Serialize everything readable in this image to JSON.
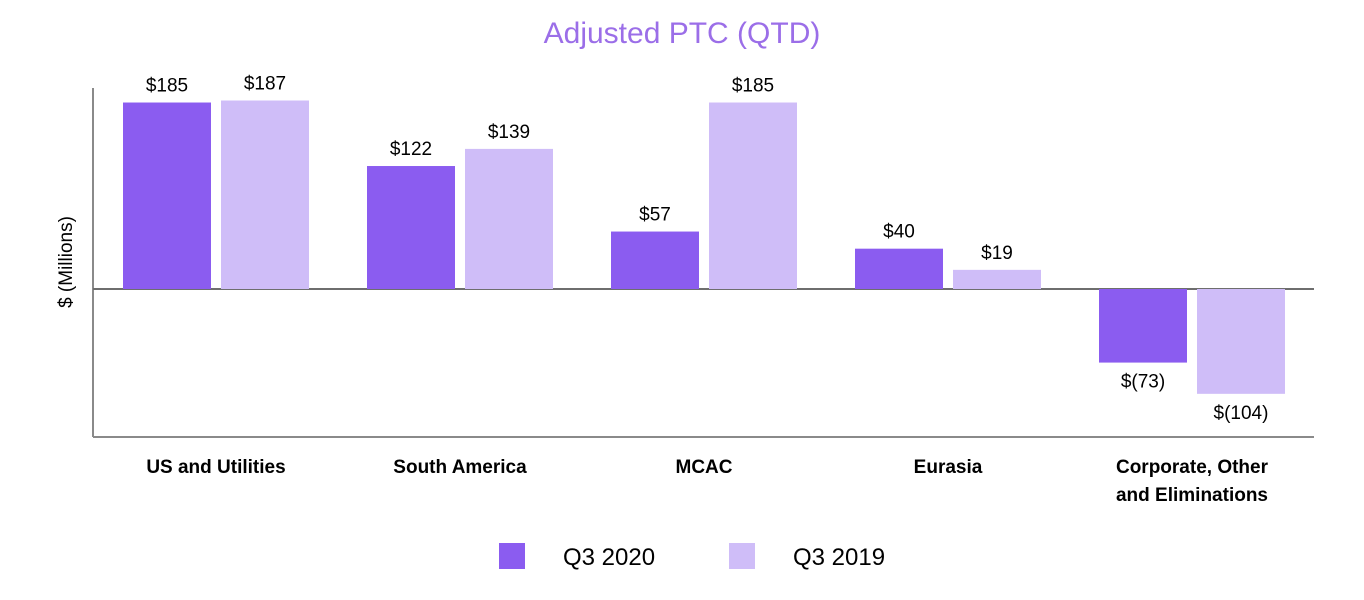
{
  "chart_data": {
    "type": "bar",
    "title": "Adjusted PTC (QTD)",
    "ylabel": "$ (Millions)",
    "xlabel": "",
    "categories": [
      [
        "US and Utilities"
      ],
      [
        "South America"
      ],
      [
        "MCAC"
      ],
      [
        "Eurasia"
      ],
      [
        "Corporate, Other",
        "and Eliminations"
      ]
    ],
    "series": [
      {
        "name": "Q3 2020",
        "color": "#8b5cf0",
        "values": [
          185,
          122,
          57,
          40,
          -73
        ],
        "labels": [
          "$185",
          "$122",
          "$57",
          "$40",
          "$(73)"
        ]
      },
      {
        "name": "Q3 2019",
        "color": "#cfbdf8",
        "values": [
          187,
          139,
          185,
          19,
          -104
        ],
        "labels": [
          "$187",
          "$139",
          "$185",
          "$19",
          "$(104)"
        ]
      }
    ],
    "ylim": [
      -145,
      197
    ],
    "grid": false,
    "legend": "bottom-center",
    "title_color": "#9b6ee8"
  }
}
